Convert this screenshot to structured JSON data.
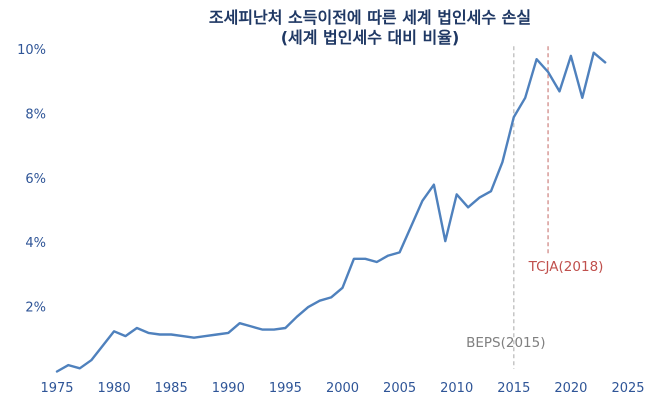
{
  "chart_data": {
    "type": "line",
    "title": "조세피난처 소득이전에 따른 세계 법인세수 손실",
    "subtitle": "(세계 법인세수 대비 비율)",
    "x": [
      1975,
      1976,
      1977,
      1978,
      1979,
      1980,
      1981,
      1982,
      1983,
      1984,
      1985,
      1986,
      1987,
      1988,
      1989,
      1990,
      1991,
      1992,
      1993,
      1994,
      1995,
      1996,
      1997,
      1998,
      1999,
      2000,
      2001,
      2002,
      2003,
      2004,
      2005,
      2006,
      2007,
      2008,
      2009,
      2010,
      2011,
      2012,
      2013,
      2014,
      2015,
      2016,
      2017,
      2018,
      2019,
      2020,
      2021,
      2022,
      2023
    ],
    "values": [
      0.0,
      0.2,
      0.1,
      0.35,
      0.8,
      1.25,
      1.1,
      1.35,
      1.2,
      1.15,
      1.15,
      1.1,
      1.05,
      1.1,
      1.15,
      1.2,
      1.5,
      1.4,
      1.3,
      1.3,
      1.35,
      1.7,
      2.0,
      2.2,
      2.3,
      2.6,
      3.5,
      3.5,
      3.4,
      3.6,
      3.7,
      4.5,
      5.3,
      5.8,
      4.05,
      5.5,
      5.1,
      5.4,
      5.6,
      6.5,
      7.9,
      8.5,
      9.7,
      9.3,
      8.7,
      9.8,
      8.5,
      9.9,
      9.6
    ],
    "xlim": [
      1975,
      2025
    ],
    "ylim": [
      0,
      10
    ],
    "x_ticks": [
      1975,
      1980,
      1985,
      1990,
      1995,
      2000,
      2005,
      2010,
      2015,
      2020,
      2025
    ],
    "y_ticks": [
      2,
      4,
      6,
      8,
      10
    ],
    "y_tick_suffix": "%",
    "grid": false,
    "legend": "none",
    "line_color": "#4f81bd",
    "title_color": "#1f3864",
    "tick_color": "#2f5597",
    "annotations": [
      {
        "label": "BEPS(2015)",
        "year": 2015,
        "label_color": "#808080",
        "line_color": "#bdbdbd",
        "line_top": 10.1,
        "line_bottom": 0.08,
        "label_y": 0.76,
        "label_dx": -8
      },
      {
        "label": "TCJA(2018)",
        "year": 2018,
        "label_color": "#c0504d",
        "line_color": "#d08a88",
        "line_top": 10.1,
        "line_bottom": 3.65,
        "label_y": 3.12,
        "label_dx": 18
      }
    ]
  }
}
